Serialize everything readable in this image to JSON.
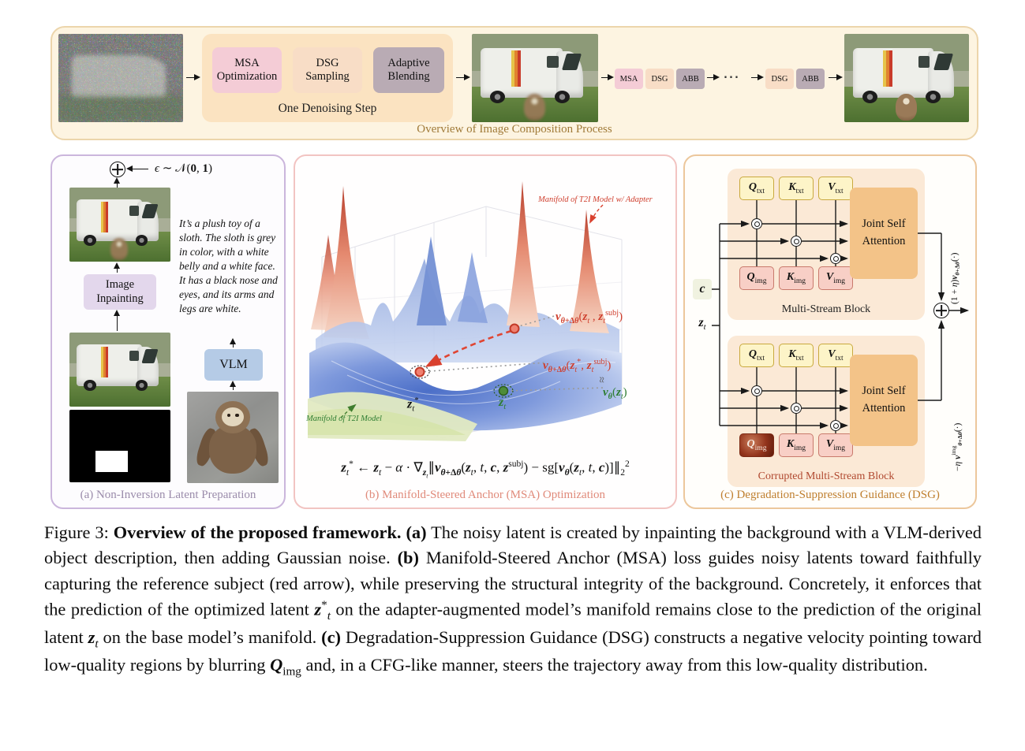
{
  "colors": {
    "banner_bg": "#fdf4e1",
    "msa_pink": "#f4ccd6",
    "dsg_tan": "#f8ddc6",
    "abb_gray": "#b9abb4",
    "panel_a_border": "#cbb6dc",
    "panel_b_border": "#f2c4c2",
    "panel_c_border": "#ecc79c",
    "txt_head_yellow": "#fdf4c8",
    "img_head_pink": "#f8cfc6",
    "attention_orange": "#f3c388",
    "vlm_blue": "#b5cbe6",
    "inpaint_purple": "#e3d7ec",
    "red_accent": "#cf3f2e",
    "green_accent": "#2e7d32"
  },
  "top_row": {
    "caption": "Overview of Image Composition Process",
    "denoising_step": {
      "label": "One Denoising Step",
      "boxes": [
        "MSA Optimization",
        "DSG Sampling",
        "Adaptive Blending"
      ]
    },
    "mini_group_1": [
      "MSA",
      "DSG",
      "ABB"
    ],
    "ellipsis": "⋯",
    "mini_group_2": [
      "DSG",
      "ABB"
    ]
  },
  "panel_a": {
    "caption": "(a) Non-Inversion Latent Preparation",
    "noise_label_html": "<i>ϵ</i> ∼ 𝒩(<b>0</b>, <b>1</b>)",
    "description": "It’s a plush toy of a sloth. The sloth is grey in color, with a white belly and a white face. It has a black nose and eyes, and its arms and legs are white.",
    "inpainting_label": "Image Inpainting",
    "vlm_label": "VLM"
  },
  "panel_b": {
    "caption": "(b) Manifold-Steered Anchor (MSA) Optimization",
    "adapter_manifold_label": "Manifold of T2I Model w/ Adapter",
    "base_manifold_label": "Manifold of T2I Model",
    "v_adapter_zt_html": "<b><i>v</i></b><sub><b><i>θ</i>+Δ<i>θ</i></b></sub>(<b><i>z</i></b><sub><i>t</i></sub> , <b><i>z</i></b><sub><i>t</i></sub><sup>subj</sup>)",
    "v_adapter_zstar_html": "<b><i>v</i></b><sub><b><i>θ</i>+Δ<i>θ</i></b></sub>(<b><i>z</i></b><sub><i>t</i></sub><sup>*</sup>, <b><i>z</i></b><sub><i>t</i></sub><sup>subj</sup>)",
    "approx_label": "≈",
    "v_base_html": "<b><i>v</i></b><sub><b><i>θ</i></b></sub>(<b><i>z</i></b><sub><i>t</i></sub>)",
    "z_star_html": "<b><i>z</i></b><sub><i>t</i></sub><sup>*</sup>",
    "z_t_html": "<b><i>z</i></b><sub><i>t</i></sub>",
    "equation_html": "<b><i>z</i></b><sub><i>t</i></sub><sup>*</sup> ← <b><i>z</i></b><sub><i>t</i></sub> − <i>α</i> · ∇<sub><b><i>z</i></b><sub><i>t</i></sub></sub>∥<b><i>v</i></b><sub><b><i>θ</i>+Δ<i>θ</i></b></sub>(<b><i>z</i></b><sub><i>t</i></sub>, <i>t</i>, <b><i>c</i></b>, <b><i>z</i></b><sup>subj</sup>) − sg[<b><i>v</i></b><sub><b><i>θ</i></b></sub>(<b><i>z</i></b><sub><i>t</i></sub>, <i>t</i>, <b><i>c</i></b>)]∥<sub>2</sub><sup>2</sup>"
  },
  "panel_c": {
    "caption": "(c) Degradation-Suppression Guidance (DSG)",
    "c_input_html": "<b><i>c</i></b>",
    "z_input_html": "<b><i>z</i></b><sub><i>t</i></sub>",
    "out_pos_html": "(1 + <i>η</i>)<b><i>v</i></b><sub><b><i>θ</i>+Δ<i>θ</i></b></sub>(·)",
    "out_neg_html": "−<i>η</i> <b><i>v</i></b><sup>img</sup><sub><b><i>θ</i>+Δ<i>θ</i></b></sub>(·)",
    "blocks": [
      {
        "label": "Multi-Stream Block",
        "attention_label": "Joint Self Attention",
        "txt_heads": [
          "<b><i>Q</i></b><sub>txt</sub>",
          "<b><i>K</i></b><sub>txt</sub>",
          "<b><i>V</i></b><sub>txt</sub>"
        ],
        "img_heads": [
          "<b><i>Q</i></b><sub>img</sub>",
          "<b><i>K</i></b><sub>img</sub>",
          "<b><i>V</i></b><sub>img</sub>"
        ]
      },
      {
        "label": "Corrupted Multi-Stream Block",
        "attention_label": "Joint Self Attention",
        "txt_heads": [
          "<b><i>Q</i></b><sub>txt</sub>",
          "<b><i>K</i></b><sub>txt</sub>",
          "<b><i>V</i></b><sub>txt</sub>"
        ],
        "img_heads": [
          "<b><i>Q</i></b><sub>img</sub>",
          "<b><i>K</i></b><sub>img</sub>",
          "<b><i>V</i></b><sub>img</sub>"
        ]
      }
    ]
  },
  "figure_caption_html": "Figure 3: <b>Overview of the proposed framework. (a)</b> The noisy latent is created by inpainting the background with a VLM-derived object description, then adding Gaussian noise. <b>(b)</b> Manifold-Steered Anchor (MSA) loss guides noisy latents toward faithfully capturing the reference subject (red arrow), while preserving the structural integrity of the background. Concretely, it enforces that the prediction of the optimized latent <b><i>z</i></b><sup>*</sup><sub><i>t</i></sub> on the adapter-augmented model’s manifold remains close to the prediction of the original latent <b><i>z</i></b><sub><i>t</i></sub> on the base model’s manifold. <b>(c)</b> Degradation-Suppression Guidance (DSG) constructs a negative velocity pointing toward low-quality regions by blurring <b><i>Q</i></b><sub>img</sub> and, in a CFG-like manner, steers the trajectory away from this low-quality distribution."
}
